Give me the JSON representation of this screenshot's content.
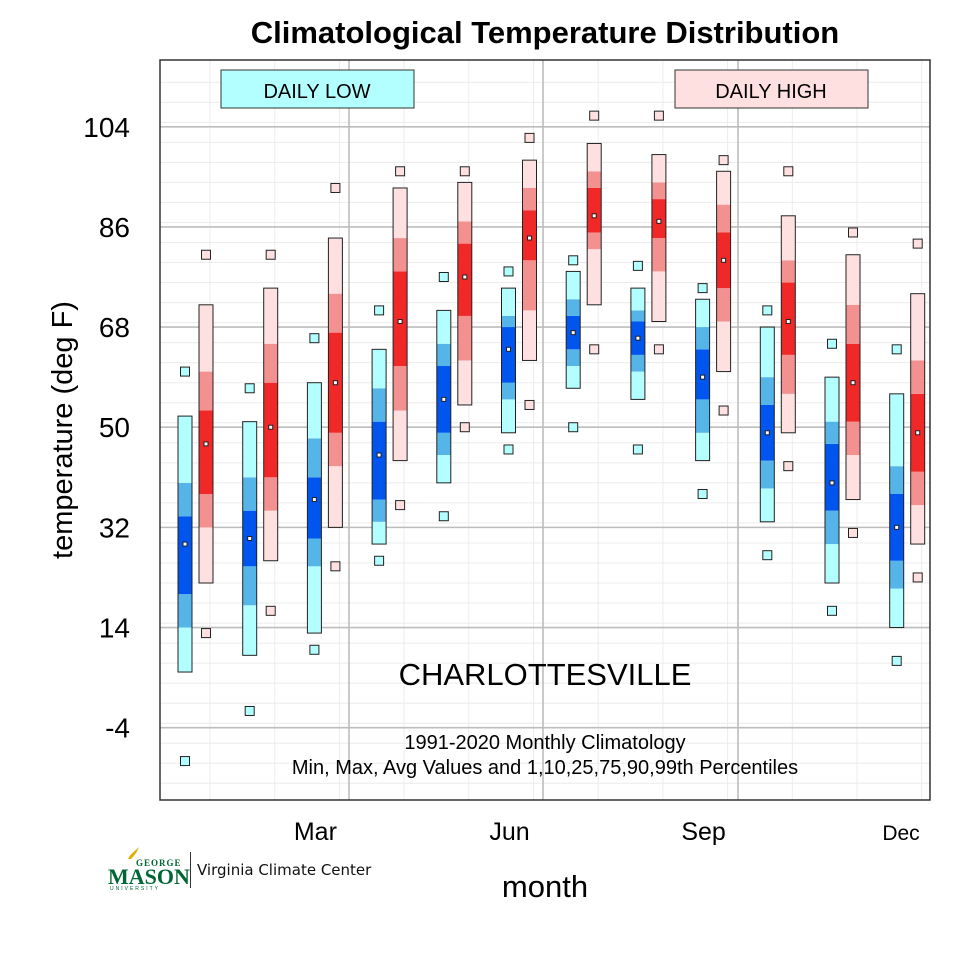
{
  "chart_data": {
    "type": "box",
    "title": "Climatological Temperature Distribution",
    "xlabel": "month",
    "ylabel": "temperature (deg F)",
    "ylim": [
      -17,
      116
    ],
    "yticks": [
      104,
      86,
      68,
      50,
      32,
      14,
      -4
    ],
    "xtick_labels": [
      "Mar",
      "Jun",
      "Sep",
      "Dec"
    ],
    "legend": {
      "low": "DAILY LOW",
      "high": "DAILY HIGH"
    },
    "location": "CHARLOTTESVILLE",
    "subtitle_line1": "1991-2020 Monthly Climatology",
    "subtitle_line2": "Min, Max, Avg Values and 1,10,25,75,90,99th Percentiles",
    "grid": true,
    "series": [
      {
        "name": "DAILY LOW",
        "colors": {
          "outer": "#b3ffff",
          "mid": "#55b5e8",
          "inner": "#0055ee"
        },
        "months": [
          {
            "min": -10,
            "p1": 6,
            "p10": 14,
            "p25": 20,
            "avg": 29,
            "p75": 34,
            "p90": 40,
            "p99": 52,
            "max": 60
          },
          {
            "min": -1,
            "p1": 9,
            "p10": 18,
            "p25": 25,
            "avg": 30,
            "p75": 35,
            "p90": 41,
            "p99": 51,
            "max": 57
          },
          {
            "min": 10,
            "p1": 13,
            "p10": 25,
            "p25": 30,
            "avg": 37,
            "p75": 41,
            "p90": 48,
            "p99": 58,
            "max": 66
          },
          {
            "min": 26,
            "p1": 29,
            "p10": 33,
            "p25": 37,
            "avg": 45,
            "p75": 51,
            "p90": 57,
            "p99": 64,
            "max": 71
          },
          {
            "min": 34,
            "p1": 40,
            "p10": 45,
            "p25": 49,
            "avg": 55,
            "p75": 61,
            "p90": 65,
            "p99": 71,
            "max": 77
          },
          {
            "min": 46,
            "p1": 49,
            "p10": 55,
            "p25": 58,
            "avg": 64,
            "p75": 68,
            "p90": 70,
            "p99": 75,
            "max": 78
          },
          {
            "min": 50,
            "p1": 57,
            "p10": 61,
            "p25": 64,
            "avg": 67,
            "p75": 70,
            "p90": 73,
            "p99": 78,
            "max": 80
          },
          {
            "min": 46,
            "p1": 55,
            "p10": 60,
            "p25": 63,
            "avg": 66,
            "p75": 69,
            "p90": 71,
            "p99": 75,
            "max": 79
          },
          {
            "min": 38,
            "p1": 44,
            "p10": 49,
            "p25": 55,
            "avg": 59,
            "p75": 64,
            "p90": 68,
            "p99": 73,
            "max": 75
          },
          {
            "min": 27,
            "p1": 33,
            "p10": 39,
            "p25": 44,
            "avg": 49,
            "p75": 54,
            "p90": 59,
            "p99": 68,
            "max": 71
          },
          {
            "min": 17,
            "p1": 22,
            "p10": 29,
            "p25": 35,
            "avg": 40,
            "p75": 47,
            "p90": 51,
            "p99": 59,
            "max": 65
          },
          {
            "min": 8,
            "p1": 14,
            "p10": 21,
            "p25": 26,
            "avg": 32,
            "p75": 38,
            "p90": 43,
            "p99": 56,
            "max": 64
          }
        ]
      },
      {
        "name": "DAILY HIGH",
        "colors": {
          "outer": "#ffe0e0",
          "mid": "#f39090",
          "inner": "#f02828"
        },
        "months": [
          {
            "min": 13,
            "p1": 22,
            "p10": 32,
            "p25": 38,
            "avg": 47,
            "p75": 53,
            "p90": 60,
            "p99": 72,
            "max": 81
          },
          {
            "min": 17,
            "p1": 26,
            "p10": 35,
            "p25": 41,
            "avg": 50,
            "p75": 58,
            "p90": 65,
            "p99": 75,
            "max": 81
          },
          {
            "min": 25,
            "p1": 32,
            "p10": 43,
            "p25": 49,
            "avg": 58,
            "p75": 67,
            "p90": 74,
            "p99": 84,
            "max": 93
          },
          {
            "min": 36,
            "p1": 44,
            "p10": 53,
            "p25": 61,
            "avg": 69,
            "p75": 78,
            "p90": 84,
            "p99": 93,
            "max": 96
          },
          {
            "min": 50,
            "p1": 54,
            "p10": 62,
            "p25": 70,
            "avg": 77,
            "p75": 83,
            "p90": 87,
            "p99": 94,
            "max": 96
          },
          {
            "min": 54,
            "p1": 62,
            "p10": 71,
            "p25": 80,
            "avg": 84,
            "p75": 89,
            "p90": 93,
            "p99": 98,
            "max": 102
          },
          {
            "min": 64,
            "p1": 72,
            "p10": 82,
            "p25": 85,
            "avg": 88,
            "p75": 93,
            "p90": 96,
            "p99": 101,
            "max": 106
          },
          {
            "min": 64,
            "p1": 69,
            "p10": 78,
            "p25": 84,
            "avg": 87,
            "p75": 91,
            "p90": 94,
            "p99": 99,
            "max": 106
          },
          {
            "min": 53,
            "p1": 60,
            "p10": 69,
            "p25": 75,
            "avg": 80,
            "p75": 85,
            "p90": 90,
            "p99": 96,
            "max": 98
          },
          {
            "min": 43,
            "p1": 49,
            "p10": 56,
            "p25": 63,
            "avg": 69,
            "p75": 76,
            "p90": 80,
            "p99": 88,
            "max": 96
          },
          {
            "min": 31,
            "p1": 37,
            "p10": 45,
            "p25": 51,
            "avg": 58,
            "p75": 65,
            "p90": 72,
            "p99": 81,
            "max": 85
          },
          {
            "min": 23,
            "p1": 29,
            "p10": 36,
            "p25": 42,
            "avg": 49,
            "p75": 56,
            "p90": 62,
            "p99": 74,
            "max": 83
          }
        ]
      }
    ]
  },
  "branding": {
    "logo_top": "GEORGE",
    "logo_main": "MASON",
    "logo_bottom": "UNIVERSITY",
    "center_name": "Virginia Climate Center"
  }
}
